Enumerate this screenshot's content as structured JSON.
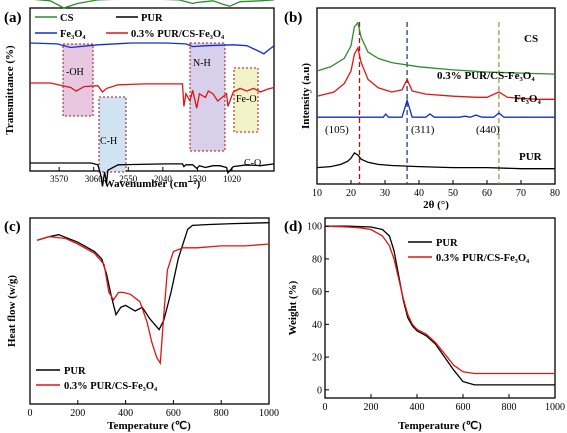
{
  "colors": {
    "cs": "#2e8b2e",
    "pur": "#000000",
    "fe3o4": "#1230c8",
    "composite": "#e01515",
    "dash_red": "#a01818",
    "dash_blue": "#27408b",
    "dash_olive": "#9a9a55"
  },
  "chart_data": [
    {
      "panel": "(a)",
      "type": "line",
      "xlabel": "Wavenumber (cm⁻¹)",
      "ylabel": "Transmittance (%)",
      "x_reversed": true,
      "xlim": [
        4000,
        400
      ],
      "xticks": [
        "3570",
        "3060",
        "2550",
        "2040",
        "1530",
        "1020"
      ],
      "legend": [
        "CS",
        "PUR",
        "Fe₃O₄",
        "0.3% PUR/CS-Fe₃O₄"
      ],
      "annotations": [
        "-OH",
        "C-H",
        "N-H",
        "Fe-O",
        "C-O"
      ],
      "series": [
        {
          "name": "CS",
          "key": "cs",
          "offset": 86,
          "x": [
            4000,
            3700,
            3500,
            3300,
            3000,
            2600,
            2200,
            1800,
            1600,
            1550,
            1420,
            1300,
            1150,
            1050,
            900,
            600,
            400
          ],
          "y": [
            0,
            2,
            10,
            5,
            1,
            0,
            0,
            1,
            5,
            4,
            3,
            2,
            6,
            8,
            3,
            2,
            1
          ]
        },
        {
          "name": "Fe₃O₄",
          "key": "fe3o4",
          "offset": 64,
          "x": [
            4000,
            3600,
            3400,
            3000,
            2500,
            2000,
            1700,
            1600,
            1400,
            1000,
            800,
            600,
            550,
            450,
            400
          ],
          "y": [
            0,
            1,
            5,
            2,
            0,
            0,
            1,
            4,
            3,
            2,
            3,
            10,
            12,
            6,
            3
          ]
        },
        {
          "name": "0.3% PUR/CS-Fe₃O₄",
          "key": "composite",
          "offset": 44,
          "x": [
            4000,
            3700,
            3400,
            3320,
            3200,
            3000,
            2960,
            2930,
            2870,
            2700,
            2300,
            1750,
            1730,
            1700,
            1640,
            1600,
            1540,
            1500,
            1410,
            1370,
            1300,
            1230,
            1100,
            1080,
            1000,
            900,
            800,
            700,
            600,
            500,
            400
          ],
          "y": [
            0,
            0,
            5,
            9,
            4,
            3,
            7,
            10,
            6,
            2,
            1,
            1,
            26,
            12,
            20,
            8,
            28,
            12,
            16,
            9,
            12,
            20,
            12,
            26,
            10,
            6,
            9,
            6,
            10,
            7,
            5
          ]
        },
        {
          "name": "PUR",
          "key": "pur",
          "offset": 4,
          "x": [
            4000,
            3500,
            3100,
            3000,
            2960,
            2930,
            2900,
            2870,
            2850,
            2700,
            2000,
            1750,
            1730,
            1700,
            1600,
            1540,
            1500,
            1410,
            1300,
            1200,
            1100,
            1080,
            1000,
            800,
            600,
            400
          ],
          "y": [
            0,
            0,
            0,
            2,
            12,
            26,
            10,
            22,
            8,
            2,
            1,
            1,
            4,
            2,
            2,
            6,
            3,
            5,
            3,
            3,
            5,
            11,
            4,
            2,
            3,
            1
          ]
        }
      ]
    },
    {
      "panel": "(b)",
      "type": "line",
      "xlabel": "2θ (°)",
      "ylabel": "Intensity (a.u)",
      "xlim": [
        10,
        80
      ],
      "xticks": [
        10,
        20,
        30,
        40,
        50,
        60,
        70,
        80
      ],
      "series_labels": [
        "CS",
        "0.3% PUR/CS-Fe₃O₄",
        "Fe₃O₄",
        "PUR"
      ],
      "peak_labels": [
        "(105)",
        "(311)",
        "(440)"
      ],
      "dashed_lines_at": [
        22.5,
        36.5,
        63.5
      ],
      "series": [
        {
          "name": "CS",
          "key": "cs",
          "x": [
            10,
            14,
            18,
            20,
            21,
            22,
            23,
            25,
            28,
            32,
            40,
            50,
            60,
            70,
            80
          ],
          "y": [
            100,
            104,
            112,
            124,
            142,
            146,
            132,
            118,
            112,
            108,
            104,
            101,
            99,
            98,
            97
          ]
        },
        {
          "name": "0.3% PUR/CS-Fe₃O₄",
          "key": "composite",
          "x": [
            10,
            15,
            18,
            20,
            21,
            22,
            23,
            25,
            28,
            32,
            35,
            36.5,
            38,
            42,
            50,
            57,
            60,
            63.5,
            66,
            70,
            75,
            80
          ],
          "y": [
            76,
            80,
            88,
            100,
            116,
            122,
            108,
            92,
            84,
            80,
            82,
            92,
            81,
            78,
            76,
            75,
            75,
            80,
            75,
            74,
            73,
            73
          ]
        },
        {
          "name": "Fe₃O₄",
          "key": "fe3o4",
          "x": [
            10,
            29.5,
            30.2,
            31,
            35,
            36.5,
            38,
            42,
            43.2,
            44.5,
            52,
            53.5,
            55,
            56.8,
            58.5,
            62,
            63.5,
            65,
            70,
            80
          ],
          "y": [
            56,
            56,
            59,
            56,
            56,
            72,
            56,
            56,
            59,
            56,
            56,
            57,
            56,
            58,
            56,
            56,
            60,
            56,
            56,
            56
          ]
        },
        {
          "name": "PUR",
          "key": "pur",
          "x": [
            10,
            14,
            17,
            19,
            20,
            21,
            22,
            23,
            25,
            28,
            32,
            40,
            50,
            60,
            70,
            80
          ],
          "y": [
            8,
            9,
            11,
            14,
            17,
            22,
            20,
            16,
            13,
            11,
            10,
            9,
            8,
            8,
            7,
            7
          ]
        }
      ]
    },
    {
      "panel": "(c)",
      "type": "line",
      "xlabel": "Temperature (℃)",
      "ylabel": "Heat flow (w/g)",
      "xlim": [
        0,
        1000
      ],
      "xticks": [
        0,
        200,
        400,
        600,
        800,
        1000
      ],
      "legend": [
        "PUR",
        "0.3% PUR/CS-Fe₃O₄"
      ],
      "series": [
        {
          "name": "PUR",
          "key": "pur",
          "x": [
            30,
            80,
            120,
            200,
            270,
            300,
            320,
            340,
            360,
            380,
            400,
            440,
            470,
            500,
            540,
            560,
            590,
            620,
            660,
            680,
            750,
            850,
            1000
          ],
          "y": [
            0.88,
            0.9,
            0.91,
            0.87,
            0.82,
            0.78,
            0.7,
            0.58,
            0.48,
            0.52,
            0.53,
            0.5,
            0.52,
            0.46,
            0.4,
            0.45,
            0.6,
            0.78,
            0.94,
            0.96,
            0.965,
            0.97,
            0.975
          ]
        },
        {
          "name": "0.3% PUR/CS-Fe₃O₄",
          "key": "composite",
          "x": [
            30,
            80,
            150,
            200,
            270,
            310,
            330,
            350,
            370,
            390,
            420,
            460,
            490,
            510,
            530,
            545,
            560,
            575,
            600,
            640,
            700,
            800,
            900,
            1000
          ],
          "y": [
            0.88,
            0.9,
            0.89,
            0.86,
            0.81,
            0.75,
            0.6,
            0.56,
            0.6,
            0.6,
            0.59,
            0.55,
            0.44,
            0.33,
            0.25,
            0.22,
            0.48,
            0.72,
            0.82,
            0.84,
            0.84,
            0.85,
            0.85,
            0.86
          ]
        }
      ]
    },
    {
      "panel": "(d)",
      "type": "line",
      "xlabel": "Temperature (℃)",
      "ylabel": "Weight (%)",
      "xlim": [
        0,
        1000
      ],
      "ylim": [
        -5,
        105
      ],
      "xticks": [
        0,
        200,
        400,
        600,
        800,
        1000
      ],
      "yticks": [
        0,
        20,
        40,
        60,
        80,
        100
      ],
      "legend": [
        "PUR",
        "0.3% PUR/CS-Fe₃O₄"
      ],
      "series": [
        {
          "name": "PUR",
          "key": "pur",
          "x": [
            0,
            100,
            200,
            250,
            280,
            300,
            320,
            340,
            360,
            380,
            400,
            440,
            480,
            520,
            560,
            600,
            650,
            700,
            800,
            1000
          ],
          "y": [
            100,
            100,
            99.5,
            98,
            94,
            85,
            70,
            55,
            44,
            39,
            36,
            33,
            28,
            20,
            12,
            5,
            3,
            3,
            3,
            3
          ]
        },
        {
          "name": "0.3% PUR/CS-Fe₃O₄",
          "key": "composite",
          "x": [
            0,
            100,
            150,
            200,
            250,
            280,
            300,
            320,
            340,
            360,
            380,
            400,
            440,
            480,
            520,
            560,
            600,
            650,
            700,
            800,
            1000
          ],
          "y": [
            100,
            99.5,
            99,
            98,
            94,
            88,
            80,
            68,
            56,
            46,
            40,
            37,
            34,
            29,
            22,
            15,
            11,
            10,
            10,
            10,
            10
          ]
        }
      ]
    }
  ]
}
